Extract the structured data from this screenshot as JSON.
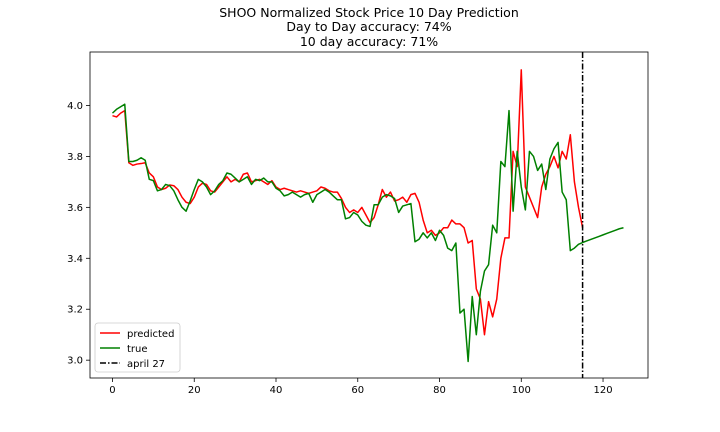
{
  "chart_data": {
    "type": "line",
    "title": "SHOO Normalized Stock Price 10 Day Prediction",
    "subtitle_lines": [
      "Day to Day accuracy: 74%",
      "10 day accuracy: 71%"
    ],
    "xlabel": "",
    "ylabel": "",
    "xlim": [
      -5.5,
      131
    ],
    "ylim": [
      2.93,
      4.21
    ],
    "xticks": [
      0,
      20,
      40,
      60,
      80,
      100,
      120
    ],
    "yticks": [
      3.0,
      3.2,
      3.4,
      3.6,
      3.8,
      4.0
    ],
    "ytick_labels": [
      "3.0",
      "3.2",
      "3.4",
      "3.6",
      "3.8",
      "4.0"
    ],
    "grid": false,
    "legend_position": "lower-left",
    "series": [
      {
        "name": "predicted",
        "color": "#ff0000",
        "x": [
          0,
          1,
          2,
          3,
          4,
          5,
          6,
          7,
          8,
          9,
          10,
          11,
          12,
          13,
          14,
          15,
          16,
          17,
          18,
          19,
          20,
          21,
          22,
          23,
          24,
          25,
          26,
          27,
          28,
          29,
          30,
          31,
          32,
          33,
          34,
          35,
          36,
          37,
          38,
          39,
          40,
          41,
          42,
          43,
          44,
          45,
          46,
          47,
          48,
          49,
          50,
          51,
          52,
          53,
          54,
          55,
          56,
          57,
          58,
          59,
          60,
          61,
          62,
          63,
          64,
          65,
          66,
          67,
          68,
          69,
          70,
          71,
          72,
          73,
          74,
          75,
          76,
          77,
          78,
          79,
          80,
          81,
          82,
          83,
          84,
          85,
          86,
          87,
          88,
          89,
          90,
          91,
          92,
          93,
          94,
          95,
          96,
          97,
          98,
          99,
          100,
          101,
          102,
          103,
          104,
          105,
          106,
          107,
          108,
          109,
          110,
          111,
          112,
          113,
          114,
          115
        ],
        "y": [
          3.96,
          3.955,
          3.97,
          3.98,
          3.775,
          3.765,
          3.77,
          3.772,
          3.775,
          3.735,
          3.72,
          3.68,
          3.67,
          3.675,
          3.688,
          3.685,
          3.67,
          3.64,
          3.62,
          3.615,
          3.64,
          3.68,
          3.695,
          3.69,
          3.665,
          3.66,
          3.68,
          3.7,
          3.72,
          3.7,
          3.71,
          3.7,
          3.73,
          3.735,
          3.7,
          3.705,
          3.71,
          3.7,
          3.69,
          3.705,
          3.68,
          3.67,
          3.675,
          3.67,
          3.665,
          3.66,
          3.665,
          3.66,
          3.655,
          3.66,
          3.665,
          3.68,
          3.675,
          3.665,
          3.66,
          3.66,
          3.635,
          3.6,
          3.58,
          3.59,
          3.58,
          3.6,
          3.57,
          3.54,
          3.56,
          3.61,
          3.67,
          3.64,
          3.66,
          3.625,
          3.63,
          3.64,
          3.62,
          3.65,
          3.655,
          3.62,
          3.55,
          3.5,
          3.51,
          3.49,
          3.5,
          3.52,
          3.52,
          3.55,
          3.535,
          3.535,
          3.52,
          3.46,
          3.47,
          3.28,
          3.24,
          3.1,
          3.23,
          3.17,
          3.24,
          3.4,
          3.48,
          3.48,
          3.82,
          3.76,
          4.14,
          3.68,
          3.64,
          3.6,
          3.56,
          3.68,
          3.73,
          3.76,
          3.8,
          3.755,
          3.82,
          3.79,
          3.885,
          3.7,
          3.6,
          3.52
        ]
      },
      {
        "name": "true",
        "color": "#008000",
        "x": [
          0,
          1,
          2,
          3,
          4,
          5,
          6,
          7,
          8,
          9,
          10,
          11,
          12,
          13,
          14,
          15,
          16,
          17,
          18,
          19,
          20,
          21,
          22,
          23,
          24,
          25,
          26,
          27,
          28,
          29,
          30,
          31,
          32,
          33,
          34,
          35,
          36,
          37,
          38,
          39,
          40,
          41,
          42,
          43,
          44,
          45,
          46,
          47,
          48,
          49,
          50,
          51,
          52,
          53,
          54,
          55,
          56,
          57,
          58,
          59,
          60,
          61,
          62,
          63,
          64,
          65,
          66,
          67,
          68,
          69,
          70,
          71,
          72,
          73,
          74,
          75,
          76,
          77,
          78,
          79,
          80,
          81,
          82,
          83,
          84,
          85,
          86,
          87,
          88,
          89,
          90,
          91,
          92,
          93,
          94,
          95,
          96,
          97,
          98,
          99,
          100,
          101,
          102,
          103,
          104,
          105,
          106,
          107,
          108,
          109,
          110,
          111,
          112,
          113,
          114,
          115,
          116,
          117,
          118,
          119,
          120,
          121,
          122,
          123,
          124,
          125
        ],
        "y": [
          3.97,
          3.985,
          3.995,
          4.005,
          3.78,
          3.78,
          3.785,
          3.795,
          3.785,
          3.71,
          3.705,
          3.665,
          3.67,
          3.69,
          3.685,
          3.665,
          3.63,
          3.6,
          3.585,
          3.625,
          3.67,
          3.71,
          3.7,
          3.68,
          3.65,
          3.665,
          3.69,
          3.705,
          3.735,
          3.73,
          3.715,
          3.7,
          3.71,
          3.72,
          3.69,
          3.71,
          3.705,
          3.715,
          3.7,
          3.7,
          3.675,
          3.665,
          3.645,
          3.65,
          3.66,
          3.65,
          3.64,
          3.65,
          3.655,
          3.62,
          3.65,
          3.66,
          3.67,
          3.66,
          3.645,
          3.63,
          3.63,
          3.555,
          3.56,
          3.58,
          3.57,
          3.545,
          3.53,
          3.525,
          3.61,
          3.61,
          3.64,
          3.65,
          3.645,
          3.635,
          3.58,
          3.605,
          3.61,
          3.615,
          3.465,
          3.475,
          3.5,
          3.48,
          3.5,
          3.47,
          3.51,
          3.49,
          3.44,
          3.43,
          3.46,
          3.185,
          3.2,
          2.995,
          3.25,
          3.1,
          3.27,
          3.35,
          3.375,
          3.53,
          3.5,
          3.78,
          3.76,
          3.98,
          3.585,
          3.82,
          3.68,
          3.59,
          3.82,
          3.8,
          3.745,
          3.77,
          3.67,
          3.79,
          3.83,
          3.855,
          3.66,
          3.63,
          3.43,
          3.44,
          3.455,
          3.462,
          3.468,
          3.474,
          3.48,
          3.486,
          3.492,
          3.498,
          3.504,
          3.51,
          3.516,
          3.52
        ]
      }
    ],
    "vline": {
      "name": "april 27",
      "x": 115,
      "color": "#000000",
      "style": "dashdot"
    }
  }
}
